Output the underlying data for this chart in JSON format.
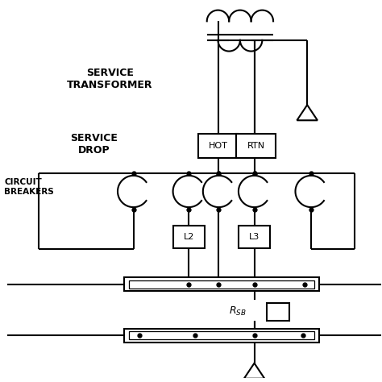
{
  "bg_color": "#ffffff",
  "line_color": "#000000",
  "lw": 1.5,
  "fig_size": [
    4.74,
    4.74
  ],
  "dpi": 100,
  "labels": {
    "service_transformer": "SERVICE\nTRANSFORMER",
    "service_drop": "SERVICE\nDROP",
    "circuit_breakers": "CIRCUIT\nBREAKERS",
    "hot": "HOT",
    "rtn": "RTN",
    "l2": "L2",
    "l3": "L3",
    "rsb": "$R_{SB}$"
  }
}
